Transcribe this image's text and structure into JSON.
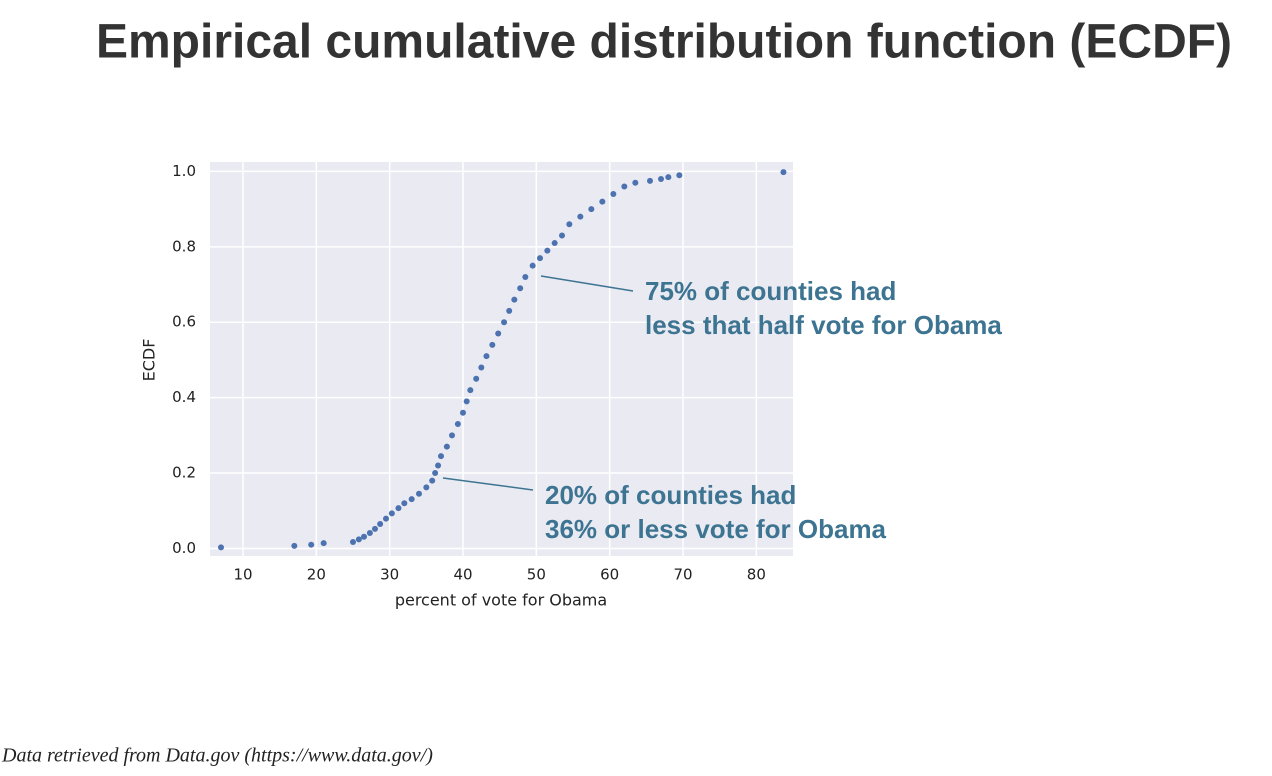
{
  "slide_title": "Empirical cumulative distribution function (ECDF)",
  "source": "Data retrieved from Data.gov (https://www.data.gov/)",
  "chart_data": {
    "type": "scatter",
    "x_label": "percent of vote for Obama",
    "y_label": "ECDF",
    "color": "#4c72b0",
    "background": "#eaeaf2",
    "grid": true,
    "xlim": [
      5.5,
      85
    ],
    "ylim": [
      -0.02,
      1.025
    ],
    "xticks": [
      10,
      20,
      30,
      40,
      50,
      60,
      70,
      80
    ],
    "yticks": [
      {
        "value": 0,
        "label": "0.0"
      },
      0.2,
      0.4,
      0.6,
      0.8,
      {
        "value": 1,
        "label": "1.0"
      }
    ],
    "x": [
      7.0,
      17.0,
      19.3,
      21.0,
      25.0,
      25.8,
      26.5,
      27.3,
      28.0,
      28.7,
      29.5,
      30.3,
      31.2,
      32.0,
      33.0,
      34.0,
      35.0,
      35.8,
      36.2,
      36.6,
      37.0,
      37.8,
      38.5,
      39.3,
      40.0,
      40.5,
      41.0,
      41.8,
      42.5,
      43.2,
      44.0,
      44.8,
      45.6,
      46.3,
      47.0,
      47.8,
      48.5,
      49.5,
      50.5,
      51.5,
      52.5,
      53.5,
      54.5,
      56.0,
      57.5,
      59.0,
      60.5,
      62.0,
      63.5,
      65.5,
      67.0,
      68.0,
      69.5,
      83.7
    ],
    "values": [
      0.003,
      0.007,
      0.01,
      0.014,
      0.017,
      0.024,
      0.031,
      0.041,
      0.052,
      0.065,
      0.079,
      0.093,
      0.107,
      0.12,
      0.131,
      0.145,
      0.162,
      0.18,
      0.2,
      0.22,
      0.245,
      0.27,
      0.3,
      0.33,
      0.36,
      0.39,
      0.42,
      0.45,
      0.48,
      0.51,
      0.54,
      0.57,
      0.6,
      0.63,
      0.66,
      0.69,
      0.72,
      0.75,
      0.77,
      0.79,
      0.81,
      0.83,
      0.86,
      0.88,
      0.9,
      0.92,
      0.94,
      0.96,
      0.97,
      0.975,
      0.98,
      0.985,
      0.99,
      0.998
    ],
    "annotations": [
      {
        "lines": [
          "75% of counties had",
          "less that half vote for Obama"
        ]
      },
      {
        "lines": [
          "20% of counties had",
          "36% or less vote for Obama"
        ]
      }
    ]
  }
}
